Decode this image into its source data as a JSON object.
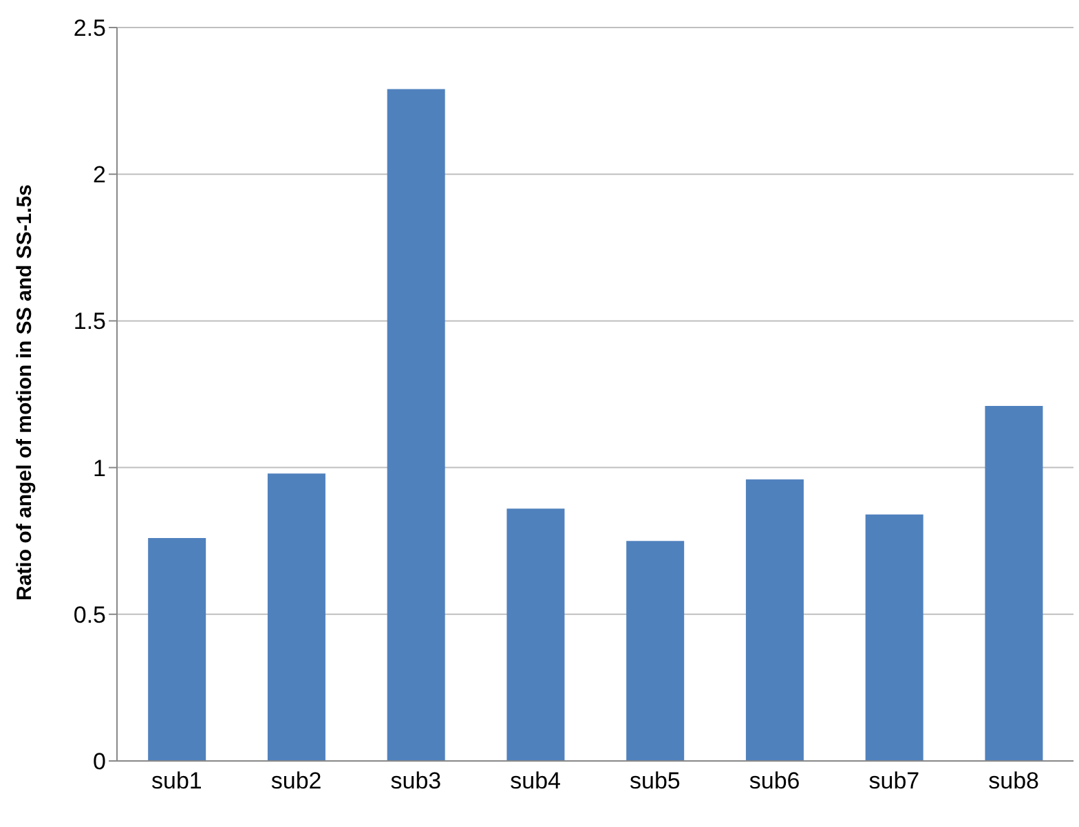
{
  "chart_data": {
    "type": "bar",
    "ylabel": "Ratio of angel  of motion in SS and SS-1.5s",
    "categories": [
      "sub1",
      "sub2",
      "sub3",
      "sub4",
      "sub5",
      "sub6",
      "sub7",
      "sub8"
    ],
    "values": [
      0.76,
      0.98,
      2.29,
      0.86,
      0.75,
      0.96,
      0.84,
      1.21
    ],
    "color": "#4f81bd",
    "ylim": [
      0,
      2.5
    ],
    "yticks": [
      0,
      0.5,
      1,
      1.5,
      2,
      2.5
    ],
    "grid": "y"
  }
}
